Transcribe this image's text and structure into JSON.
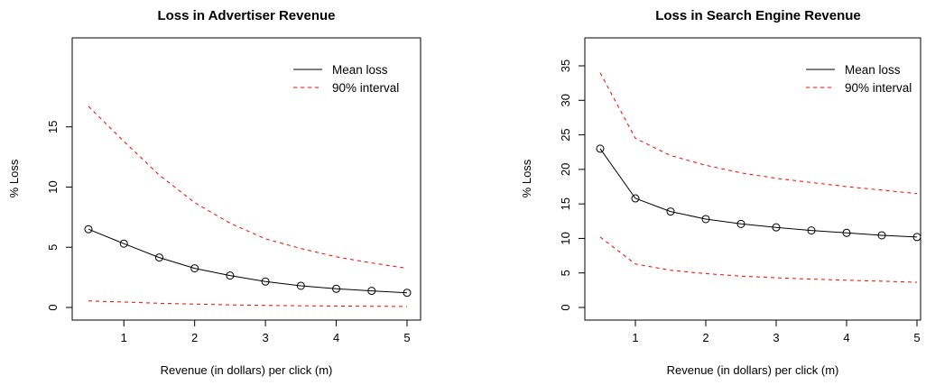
{
  "chart_data": [
    {
      "type": "line",
      "title": "Loss in Advertiser Revenue",
      "xlabel": "Revenue (in dollars) per click (m)",
      "ylabel": "% Loss",
      "xlim": [
        0.5,
        5
      ],
      "ylim": [
        0,
        17
      ],
      "x_ticks": [
        "1",
        "2",
        "3",
        "4",
        "5"
      ],
      "y_ticks": [
        "0",
        "5",
        "10",
        "15"
      ],
      "grid": false,
      "legend_position": "top-right",
      "x": [
        0.5,
        1,
        1.5,
        2,
        2.5,
        3,
        3.5,
        4,
        4.5,
        5
      ],
      "series": [
        {
          "name": "Mean loss",
          "style": "solid",
          "color": "#000000",
          "markers": true,
          "values": [
            6.5,
            5.3,
            4.15,
            3.25,
            2.65,
            2.15,
            1.8,
            1.55,
            1.38,
            1.22
          ]
        },
        {
          "name": "90% interval",
          "style": "dashed",
          "color": "#ff0000",
          "markers": false,
          "values": [
            16.7,
            13.8,
            11.0,
            8.7,
            7.0,
            5.7,
            4.9,
            4.2,
            3.7,
            3.25
          ]
        },
        {
          "name": "",
          "style": "dashed",
          "color": "#ff0000",
          "markers": false,
          "values": [
            0.55,
            0.45,
            0.35,
            0.28,
            0.22,
            0.17,
            0.14,
            0.12,
            0.1,
            0.08
          ]
        }
      ]
    },
    {
      "type": "line",
      "title": "Loss in Search Engine Revenue",
      "xlabel": "Revenue (in dollars) per click (m)",
      "ylabel": "% Loss",
      "xlim": [
        0.5,
        5
      ],
      "ylim": [
        0,
        35
      ],
      "x_ticks": [
        "1",
        "2",
        "3",
        "4",
        "5"
      ],
      "y_ticks": [
        "0",
        "5",
        "10",
        "15",
        "20",
        "25",
        "30",
        "35"
      ],
      "grid": false,
      "legend_position": "top-right",
      "x": [
        0.5,
        1,
        1.5,
        2,
        2.5,
        3,
        3.5,
        4,
        4.5,
        5
      ],
      "series": [
        {
          "name": "Mean loss",
          "style": "solid",
          "color": "#000000",
          "markers": true,
          "values": [
            23.0,
            15.8,
            13.9,
            12.8,
            12.1,
            11.6,
            11.15,
            10.8,
            10.45,
            10.2
          ]
        },
        {
          "name": "90% interval",
          "style": "dashed",
          "color": "#ff0000",
          "markers": false,
          "values": [
            34.0,
            24.5,
            22.0,
            20.6,
            19.5,
            18.7,
            18.1,
            17.5,
            17.0,
            16.5
          ]
        },
        {
          "name": "",
          "style": "dashed",
          "color": "#ff0000",
          "markers": false,
          "values": [
            10.2,
            6.3,
            5.4,
            4.9,
            4.55,
            4.3,
            4.1,
            3.95,
            3.8,
            3.65
          ]
        }
      ]
    }
  ]
}
